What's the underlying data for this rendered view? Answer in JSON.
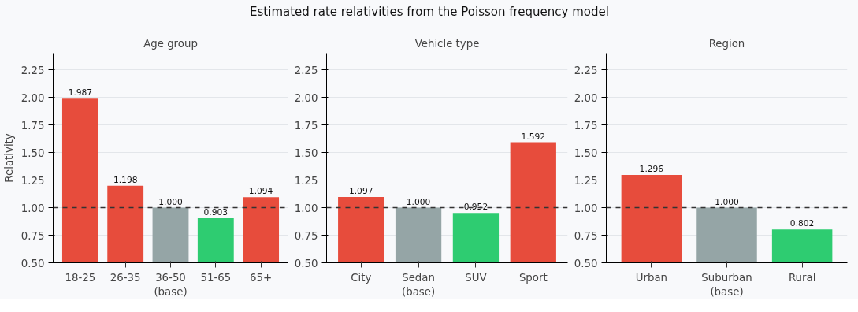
{
  "chart_data": [
    {
      "type": "bar",
      "title": "Age group",
      "annotations": [
        "Estimated rate relativities from the Poisson frequency model"
      ],
      "ylabel": "Relativity",
      "categories": [
        "18-25",
        "26-35",
        "36-50\n(base)",
        "51-65",
        "65+"
      ],
      "values": [
        1.987,
        1.198,
        1.0,
        0.903,
        1.094
      ],
      "colors": [
        "#e74c3c",
        "#e74c3c",
        "#95a5a6",
        "#2ecc71",
        "#e74c3c"
      ],
      "value_labels": [
        "1.987",
        "1.198",
        "1.000",
        "0.903",
        "1.094"
      ],
      "ylim": [
        0.5,
        2.4
      ],
      "yticks": [
        {
          "value": 0.5,
          "label": "0.50"
        },
        {
          "value": 0.75,
          "label": "0.75"
        },
        {
          "value": 1.0,
          "label": "1.00"
        },
        {
          "value": 1.25,
          "label": "1.25"
        },
        {
          "value": 1.5,
          "label": "1.50"
        },
        {
          "value": 1.75,
          "label": "1.75"
        },
        {
          "value": 2.0,
          "label": "2.00"
        },
        {
          "value": 2.25,
          "label": "2.25"
        }
      ],
      "grid": "y",
      "ref_lines": [
        {
          "axis": "y",
          "value": 1.0,
          "label": null,
          "color": "#333333",
          "line_style": "dashed"
        }
      ]
    },
    {
      "type": "bar",
      "title": "Vehicle type",
      "categories": [
        "City",
        "Sedan\n(base)",
        "SUV",
        "Sport"
      ],
      "values": [
        1.097,
        1.0,
        0.952,
        1.592
      ],
      "colors": [
        "#e74c3c",
        "#95a5a6",
        "#2ecc71",
        "#e74c3c"
      ],
      "value_labels": [
        "1.097",
        "1.000",
        "0.952",
        "1.592"
      ],
      "ylim": [
        0.5,
        2.4
      ],
      "yticks": [
        {
          "value": 0.5,
          "label": "0.50"
        },
        {
          "value": 0.75,
          "label": "0.75"
        },
        {
          "value": 1.0,
          "label": "1.00"
        },
        {
          "value": 1.25,
          "label": "1.25"
        },
        {
          "value": 1.5,
          "label": "1.50"
        },
        {
          "value": 1.75,
          "label": "1.75"
        },
        {
          "value": 2.0,
          "label": "2.00"
        },
        {
          "value": 2.25,
          "label": "2.25"
        }
      ],
      "grid": "y",
      "ref_lines": [
        {
          "axis": "y",
          "value": 1.0,
          "label": null,
          "color": "#333333",
          "line_style": "dashed"
        }
      ]
    },
    {
      "type": "bar",
      "title": "Region",
      "categories": [
        "Urban",
        "Suburban\n(base)",
        "Rural"
      ],
      "values": [
        1.296,
        1.0,
        0.802
      ],
      "colors": [
        "#e74c3c",
        "#95a5a6",
        "#2ecc71"
      ],
      "value_labels": [
        "1.296",
        "1.000",
        "0.802"
      ],
      "ylim": [
        0.5,
        2.4
      ],
      "yticks": [
        {
          "value": 0.5,
          "label": "0.50"
        },
        {
          "value": 0.75,
          "label": "0.75"
        },
        {
          "value": 1.0,
          "label": "1.00"
        },
        {
          "value": 1.25,
          "label": "1.25"
        },
        {
          "value": 1.5,
          "label": "1.50"
        },
        {
          "value": 1.75,
          "label": "1.75"
        },
        {
          "value": 2.0,
          "label": "2.00"
        },
        {
          "value": 2.25,
          "label": "2.25"
        }
      ],
      "grid": "y",
      "ref_lines": [
        {
          "axis": "y",
          "value": 1.0,
          "label": null,
          "color": "#333333",
          "line_style": "dashed"
        }
      ]
    }
  ]
}
